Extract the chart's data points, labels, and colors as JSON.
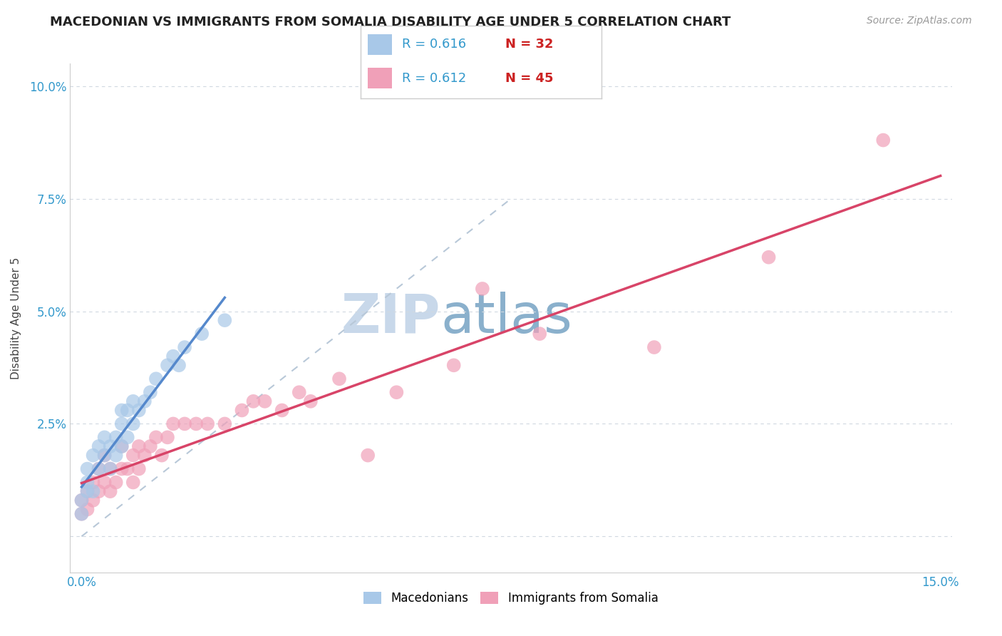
{
  "title": "MACEDONIAN VS IMMIGRANTS FROM SOMALIA DISABILITY AGE UNDER 5 CORRELATION CHART",
  "source": "Source: ZipAtlas.com",
  "ylabel_label": "Disability Age Under 5",
  "legend_bottom": [
    "Macedonians",
    "Immigrants from Somalia"
  ],
  "xlim": [
    -0.002,
    0.152
  ],
  "ylim": [
    -0.008,
    0.105
  ],
  "xticks": [
    0.0,
    0.025,
    0.05,
    0.075,
    0.1,
    0.125,
    0.15
  ],
  "yticks": [
    0.0,
    0.025,
    0.05,
    0.075,
    0.1
  ],
  "ytick_labels": [
    "",
    "2.5%",
    "5.0%",
    "7.5%",
    "10.0%"
  ],
  "R_macedonian": 0.616,
  "N_macedonian": 32,
  "R_somalia": 0.612,
  "N_somalia": 45,
  "color_macedonian": "#a8c8e8",
  "color_somalia": "#f0a0b8",
  "color_macedonian_line": "#5588cc",
  "color_somalia_line": "#d84468",
  "color_diag_line": "#b8c8d8",
  "watermark_zip": "#c8d8ea",
  "watermark_atlas": "#8ab0cc",
  "macedonian_x": [
    0.0,
    0.0,
    0.001,
    0.001,
    0.001,
    0.002,
    0.002,
    0.003,
    0.003,
    0.004,
    0.004,
    0.005,
    0.005,
    0.006,
    0.006,
    0.007,
    0.007,
    0.007,
    0.008,
    0.008,
    0.009,
    0.009,
    0.01,
    0.011,
    0.012,
    0.013,
    0.015,
    0.016,
    0.017,
    0.018,
    0.021,
    0.025
  ],
  "macedonian_y": [
    0.005,
    0.008,
    0.01,
    0.012,
    0.015,
    0.01,
    0.018,
    0.015,
    0.02,
    0.018,
    0.022,
    0.015,
    0.02,
    0.018,
    0.022,
    0.02,
    0.025,
    0.028,
    0.022,
    0.028,
    0.025,
    0.03,
    0.028,
    0.03,
    0.032,
    0.035,
    0.038,
    0.04,
    0.038,
    0.042,
    0.045,
    0.048
  ],
  "somalia_x": [
    0.0,
    0.0,
    0.001,
    0.001,
    0.002,
    0.002,
    0.003,
    0.003,
    0.004,
    0.004,
    0.005,
    0.005,
    0.006,
    0.007,
    0.007,
    0.008,
    0.009,
    0.009,
    0.01,
    0.01,
    0.011,
    0.012,
    0.013,
    0.014,
    0.015,
    0.016,
    0.018,
    0.02,
    0.022,
    0.025,
    0.028,
    0.03,
    0.032,
    0.035,
    0.038,
    0.04,
    0.045,
    0.05,
    0.055,
    0.065,
    0.07,
    0.08,
    0.1,
    0.12,
    0.14
  ],
  "somalia_y": [
    0.005,
    0.008,
    0.006,
    0.01,
    0.008,
    0.012,
    0.01,
    0.015,
    0.012,
    0.018,
    0.01,
    0.015,
    0.012,
    0.015,
    0.02,
    0.015,
    0.012,
    0.018,
    0.015,
    0.02,
    0.018,
    0.02,
    0.022,
    0.018,
    0.022,
    0.025,
    0.025,
    0.025,
    0.025,
    0.025,
    0.028,
    0.03,
    0.03,
    0.028,
    0.032,
    0.03,
    0.035,
    0.018,
    0.032,
    0.038,
    0.055,
    0.045,
    0.042,
    0.062,
    0.088
  ]
}
